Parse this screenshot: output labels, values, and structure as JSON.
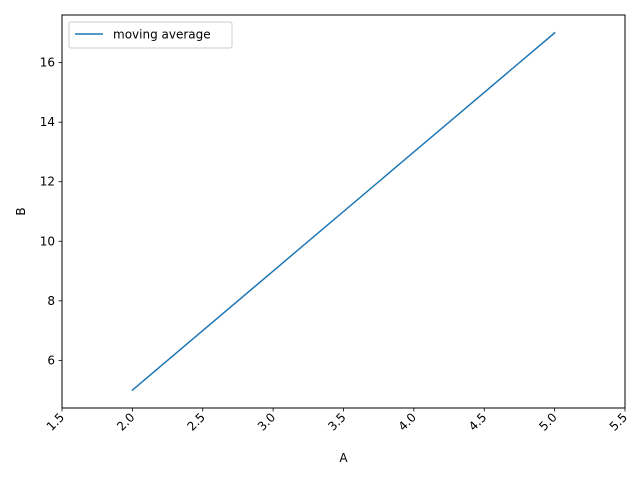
{
  "chart_data": {
    "type": "line",
    "xlabel": "A",
    "ylabel": "B",
    "xlim": [
      1.5,
      5.5
    ],
    "ylim": [
      4.4,
      17.6
    ],
    "x_ticks": [
      "1.5",
      "2.0",
      "2.5",
      "3.0",
      "3.5",
      "4.0",
      "4.5",
      "5.0",
      "5.5"
    ],
    "y_ticks": [
      "6",
      "8",
      "10",
      "12",
      "14",
      "16"
    ],
    "x_tick_rotation_deg": 45,
    "grid": false,
    "legend_position": "top-left",
    "series": [
      {
        "name": "moving average",
        "color": "#1f77b4",
        "x": [
          2,
          3,
          4,
          5
        ],
        "y": [
          5,
          9,
          13,
          17
        ]
      }
    ]
  }
}
